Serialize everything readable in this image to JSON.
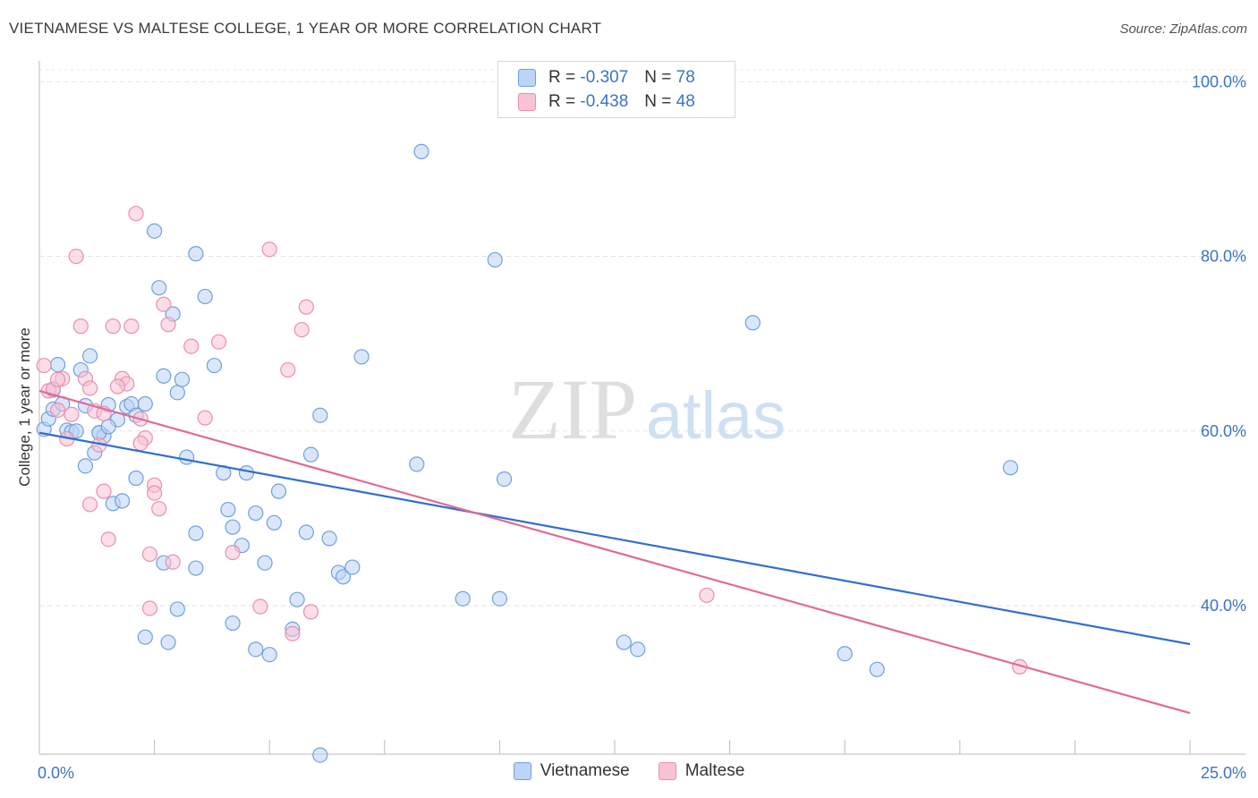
{
  "title": "VIETNAMESE VS MALTESE COLLEGE, 1 YEAR OR MORE CORRELATION CHART",
  "source": "Source: ZipAtlas.com",
  "watermark": {
    "zip": "ZIP",
    "atlas": "atlas"
  },
  "legend": {
    "rows": [
      {
        "r_label": "R =",
        "r_value": "-0.307",
        "n_label": "N =",
        "n_value": "78"
      },
      {
        "r_label": "R =",
        "r_value": "-0.438",
        "n_label": "N =",
        "n_value": "48"
      }
    ]
  },
  "chart_data": {
    "type": "scatter",
    "title": "VIETNAMESE VS MALTESE COLLEGE, 1 YEAR OR MORE CORRELATION CHART",
    "xlabel": "",
    "ylabel": "College, 1 year or more",
    "xlim": [
      0,
      25
    ],
    "ylim": [
      23,
      103
    ],
    "x_tick_labels": [
      {
        "value": 0,
        "label": "0.0%"
      },
      {
        "value": 25,
        "label": "25.0%"
      }
    ],
    "y_tick_labels": [
      {
        "value": 100,
        "label": "100.0%"
      },
      {
        "value": 80,
        "label": "80.0%"
      },
      {
        "value": 60,
        "label": "60.0%"
      },
      {
        "value": 40,
        "label": "40.0%"
      }
    ],
    "y_gridlines": [
      100,
      80,
      60,
      40
    ],
    "series": [
      {
        "name": "Vietnamese",
        "color": "#6fa0e0",
        "fill": "#bcd4f5",
        "line_color": "#2f6fd0",
        "trend": {
          "x": [
            0,
            25
          ],
          "y": [
            59.8,
            35.6
          ]
        },
        "points": [
          [
            0.1,
            60.2
          ],
          [
            0.2,
            61.4
          ],
          [
            0.3,
            62.5
          ],
          [
            0.4,
            67.6
          ],
          [
            0.5,
            63.1
          ],
          [
            0.6,
            60.1
          ],
          [
            0.7,
            59.9
          ],
          [
            0.8,
            60.0
          ],
          [
            0.9,
            67.0
          ],
          [
            1.0,
            62.9
          ],
          [
            1.1,
            68.6
          ],
          [
            1.2,
            57.5
          ],
          [
            1.3,
            59.8
          ],
          [
            1.4,
            59.4
          ],
          [
            1.5,
            63.0
          ],
          [
            1.6,
            51.7
          ],
          [
            1.7,
            61.3
          ],
          [
            1.8,
            52.0
          ],
          [
            1.9,
            62.8
          ],
          [
            2.0,
            63.1
          ],
          [
            2.1,
            61.8
          ],
          [
            2.3,
            63.1
          ],
          [
            2.5,
            82.9
          ],
          [
            2.6,
            76.4
          ],
          [
            2.7,
            66.3
          ],
          [
            2.9,
            73.4
          ],
          [
            3.0,
            64.4
          ],
          [
            3.1,
            65.9
          ],
          [
            3.2,
            57.0
          ],
          [
            3.4,
            80.3
          ],
          [
            3.6,
            75.4
          ],
          [
            3.8,
            67.5
          ],
          [
            4.0,
            55.2
          ],
          [
            4.1,
            51.0
          ],
          [
            4.2,
            49.0
          ],
          [
            4.4,
            46.9
          ],
          [
            4.5,
            55.2
          ],
          [
            4.7,
            50.6
          ],
          [
            4.9,
            44.9
          ],
          [
            5.1,
            49.5
          ],
          [
            5.2,
            53.1
          ],
          [
            5.6,
            40.7
          ],
          [
            5.8,
            48.4
          ],
          [
            5.9,
            57.3
          ],
          [
            6.1,
            61.8
          ],
          [
            6.3,
            47.7
          ],
          [
            6.5,
            43.8
          ],
          [
            6.6,
            43.3
          ],
          [
            6.8,
            44.4
          ],
          [
            7.0,
            68.5
          ],
          [
            1.0,
            56.0
          ],
          [
            1.3,
            59.8
          ],
          [
            2.1,
            54.6
          ],
          [
            2.3,
            36.4
          ],
          [
            2.7,
            44.9
          ],
          [
            2.8,
            35.8
          ],
          [
            3.0,
            39.6
          ],
          [
            3.4,
            48.3
          ],
          [
            3.4,
            44.3
          ],
          [
            4.2,
            38.0
          ],
          [
            4.7,
            35.0
          ],
          [
            5.0,
            34.4
          ],
          [
            5.5,
            37.3
          ],
          [
            6.1,
            22.9
          ],
          [
            8.2,
            56.2
          ],
          [
            8.3,
            92.0
          ],
          [
            9.2,
            40.8
          ],
          [
            9.9,
            79.6
          ],
          [
            10.0,
            40.8
          ],
          [
            10.1,
            54.5
          ],
          [
            12.7,
            35.8
          ],
          [
            13.0,
            35.0
          ],
          [
            15.5,
            72.4
          ],
          [
            17.5,
            34.5
          ],
          [
            18.2,
            32.7
          ],
          [
            21.1,
            55.8
          ],
          [
            0.3,
            64.7
          ],
          [
            1.5,
            60.5
          ]
        ]
      },
      {
        "name": "Maltese",
        "color": "#ea8faf",
        "fill": "#f7c3d5",
        "line_color": "#e06a98",
        "trend": {
          "x": [
            0,
            25
          ],
          "y": [
            64.6,
            27.7
          ]
        },
        "points": [
          [
            0.1,
            67.5
          ],
          [
            0.2,
            64.6
          ],
          [
            0.3,
            64.8
          ],
          [
            0.4,
            62.4
          ],
          [
            0.5,
            66.0
          ],
          [
            0.6,
            59.1
          ],
          [
            0.7,
            61.9
          ],
          [
            0.8,
            80.0
          ],
          [
            0.9,
            72.0
          ],
          [
            1.0,
            66.0
          ],
          [
            1.1,
            64.9
          ],
          [
            1.2,
            62.3
          ],
          [
            1.3,
            58.4
          ],
          [
            1.4,
            53.1
          ],
          [
            1.5,
            47.6
          ],
          [
            1.6,
            72.0
          ],
          [
            1.8,
            66.0
          ],
          [
            1.9,
            65.4
          ],
          [
            2.0,
            72.0
          ],
          [
            2.1,
            84.9
          ],
          [
            2.2,
            61.4
          ],
          [
            2.3,
            59.2
          ],
          [
            2.4,
            45.9
          ],
          [
            2.5,
            53.8
          ],
          [
            2.6,
            51.1
          ],
          [
            2.7,
            74.5
          ],
          [
            2.8,
            72.2
          ],
          [
            2.9,
            45.0
          ],
          [
            3.3,
            69.7
          ],
          [
            3.6,
            61.5
          ],
          [
            3.9,
            70.2
          ],
          [
            4.2,
            46.1
          ],
          [
            4.8,
            39.9
          ],
          [
            5.0,
            80.8
          ],
          [
            5.4,
            67.0
          ],
          [
            5.5,
            36.8
          ],
          [
            5.7,
            71.6
          ],
          [
            5.8,
            74.2
          ],
          [
            5.9,
            39.3
          ],
          [
            1.1,
            51.6
          ],
          [
            1.4,
            62.0
          ],
          [
            1.7,
            65.1
          ],
          [
            2.2,
            58.6
          ],
          [
            2.4,
            39.7
          ],
          [
            2.5,
            52.9
          ],
          [
            0.4,
            65.9
          ],
          [
            14.5,
            41.2
          ],
          [
            21.3,
            33.0
          ]
        ]
      }
    ]
  }
}
